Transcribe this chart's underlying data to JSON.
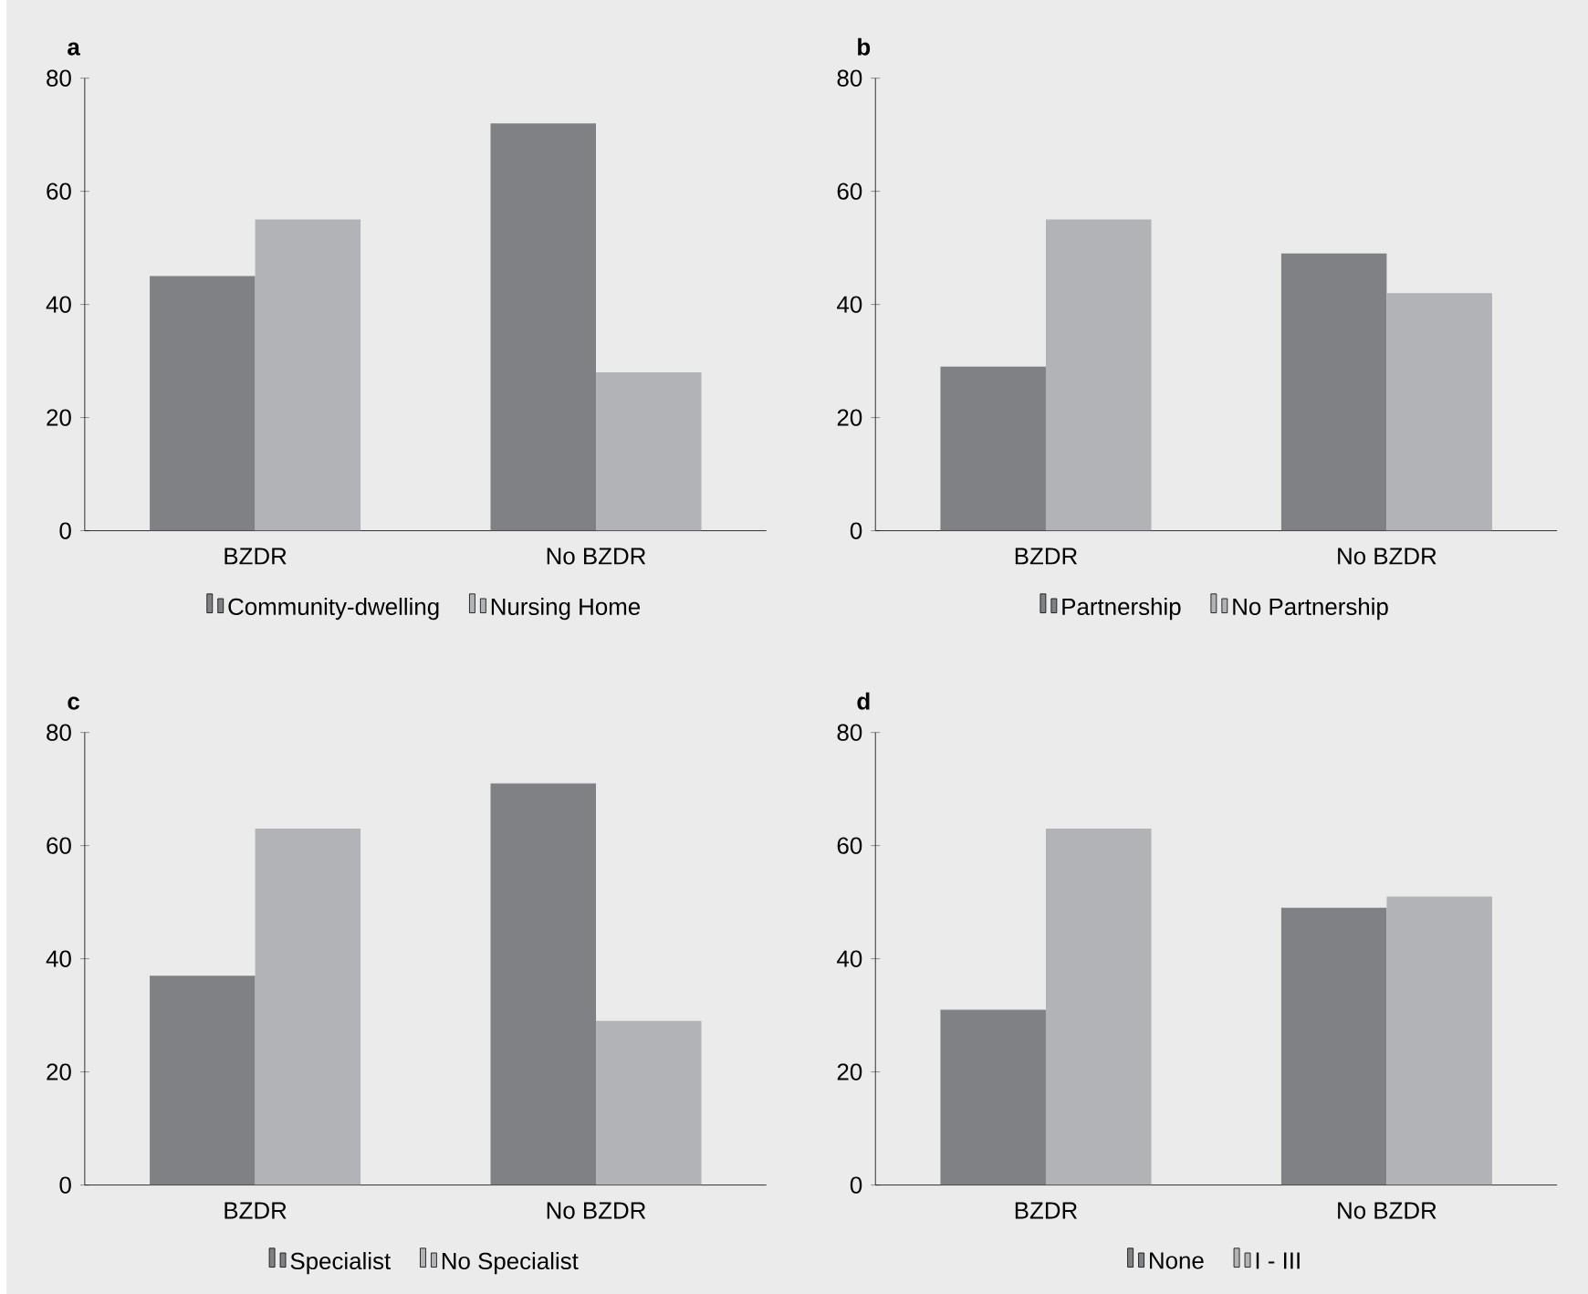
{
  "chart_data": [
    {
      "type": "bar",
      "title": "a",
      "categories": [
        "BZDR",
        "No BZDR"
      ],
      "ylim": [
        0,
        80
      ],
      "yticks": [
        0,
        20,
        40,
        60,
        80
      ],
      "legend": "bottom",
      "series": [
        {
          "name": "Community-dwelling",
          "color": "#808184",
          "values": [
            45,
            72
          ]
        },
        {
          "name": "Nursing Home",
          "color": "#b1b3b6",
          "values": [
            55,
            28
          ]
        }
      ]
    },
    {
      "type": "bar",
      "title": "b",
      "categories": [
        "BZDR",
        "No BZDR"
      ],
      "ylim": [
        0,
        80
      ],
      "yticks": [
        0,
        20,
        40,
        60,
        80
      ],
      "legend": "bottom",
      "series": [
        {
          "name": "Partnership",
          "color": "#808184",
          "values": [
            29,
            49
          ]
        },
        {
          "name": "No Partnership",
          "color": "#b1b3b6",
          "values": [
            55,
            42
          ]
        }
      ]
    },
    {
      "type": "bar",
      "title": "c",
      "categories": [
        "BZDR",
        "No BZDR"
      ],
      "ylim": [
        0,
        80
      ],
      "yticks": [
        0,
        20,
        40,
        60,
        80
      ],
      "legend": "bottom",
      "series": [
        {
          "name": "Specialist",
          "color": "#808184",
          "values": [
            37,
            71
          ]
        },
        {
          "name": "No Specialist",
          "color": "#b1b3b6",
          "values": [
            63,
            29
          ]
        }
      ]
    },
    {
      "type": "bar",
      "title": "d",
      "categories": [
        "BZDR",
        "No BZDR"
      ],
      "ylim": [
        0,
        80
      ],
      "yticks": [
        0,
        20,
        40,
        60,
        80
      ],
      "legend": "bottom",
      "series": [
        {
          "name": "None",
          "color": "#808184",
          "values": [
            31,
            49
          ]
        },
        {
          "name": "I - III",
          "color": "#b1b3b6",
          "values": [
            63,
            51
          ]
        }
      ]
    }
  ]
}
